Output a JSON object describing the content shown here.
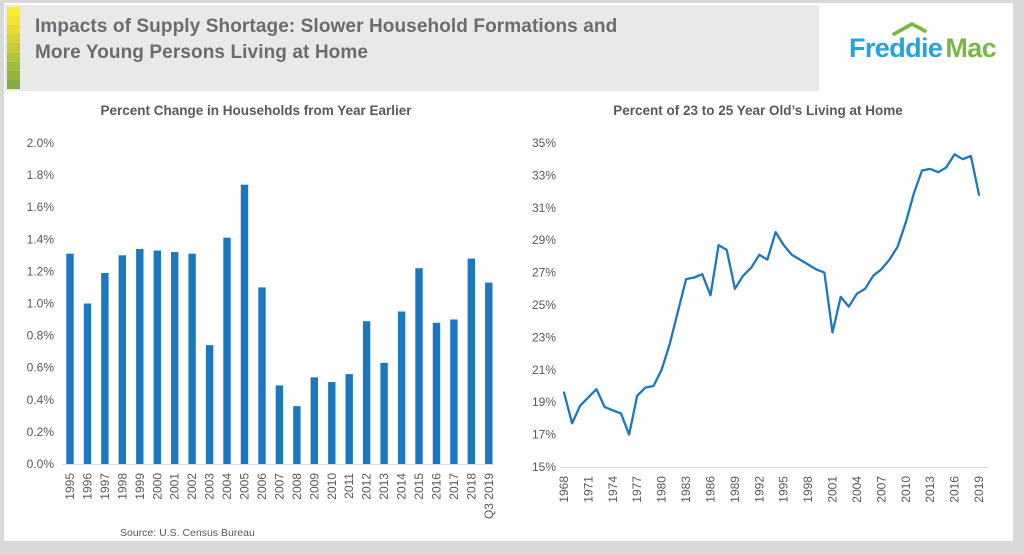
{
  "header": {
    "title_line1": "Impacts of Supply Shortage: Slower Household Formations and",
    "title_line2": "More Young Persons Living at Home",
    "logo_freddie": "Freddie",
    "logo_mac": "Mac"
  },
  "source_note": "Source: U.S. Census Bureau",
  "colors": {
    "accent_blue": "#1B78BE",
    "logo_blue": "#26A3DC",
    "logo_green": "#77B843",
    "header_band": "#E9E9E7",
    "frame_gray": "#D9D9D9",
    "title_gray": "#6B6C6F",
    "axis_text_gray": "#595959",
    "gradient_strip": [
      "#F9EC31",
      "#F3E431",
      "#E6DC34",
      "#D7D437",
      "#C6CC3A",
      "#B3C43D",
      "#A2BC40",
      "#92B541",
      "#83AE3F"
    ]
  },
  "chart_data": [
    {
      "type": "bar",
      "title": "Percent Change in Households from Year Earlier",
      "categories": [
        "1995",
        "1996",
        "1997",
        "1998",
        "1999",
        "2000",
        "2001",
        "2002",
        "2003",
        "2004",
        "2005",
        "2006",
        "2007",
        "2008",
        "2009",
        "2010",
        "2011",
        "2012",
        "2013",
        "2014",
        "2015",
        "2016",
        "2017",
        "2018",
        "Q3 2019"
      ],
      "values": [
        1.31,
        1.0,
        1.19,
        1.3,
        1.34,
        1.33,
        1.32,
        1.31,
        0.74,
        1.41,
        1.74,
        1.1,
        0.49,
        0.36,
        0.54,
        0.51,
        0.56,
        0.89,
        0.63,
        0.95,
        1.22,
        0.88,
        0.9,
        1.28,
        1.13
      ],
      "xlabel": "",
      "ylabel": "",
      "ylim": [
        0,
        2.0
      ],
      "ytick_values": [
        0,
        0.2,
        0.4,
        0.6,
        0.8,
        1.0,
        1.2,
        1.4,
        1.6,
        1.8,
        2.0
      ],
      "ytick_labels": [
        "0.0%",
        "0.2%",
        "0.4%",
        "0.6%",
        "0.8%",
        "1.0%",
        "1.2%",
        "1.4%",
        "1.6%",
        "1.8%",
        "2.0%"
      ],
      "grid": false,
      "legend": false,
      "bar_color": "#1B78BE",
      "source": "Source: U.S. Census Bureau"
    },
    {
      "type": "line",
      "title": "Percent of 23 to 25 Year Old’s Living at Home",
      "x": [
        1968,
        1969,
        1970,
        1971,
        1972,
        1973,
        1974,
        1975,
        1976,
        1977,
        1978,
        1979,
        1980,
        1981,
        1982,
        1983,
        1984,
        1985,
        1986,
        1987,
        1988,
        1989,
        1990,
        1991,
        1992,
        1993,
        1994,
        1995,
        1996,
        1997,
        1998,
        1999,
        2000,
        2001,
        2002,
        2003,
        2004,
        2005,
        2006,
        2007,
        2008,
        2009,
        2010,
        2011,
        2012,
        2013,
        2014,
        2015,
        2016,
        2017,
        2018,
        2019
      ],
      "values": [
        19.6,
        17.7,
        18.8,
        19.3,
        19.8,
        18.7,
        18.5,
        18.3,
        17.0,
        19.4,
        19.9,
        20.0,
        21.0,
        22.6,
        24.6,
        26.6,
        26.7,
        26.9,
        25.6,
        28.7,
        28.4,
        26.0,
        26.8,
        27.3,
        28.1,
        27.8,
        29.5,
        28.7,
        28.1,
        27.8,
        27.5,
        27.2,
        27.0,
        23.3,
        25.5,
        24.9,
        25.7,
        26.0,
        26.8,
        27.2,
        27.8,
        28.6,
        30.1,
        31.9,
        33.3,
        33.4,
        33.2,
        33.5,
        34.3,
        34.0,
        34.2,
        31.8
      ],
      "xlabel": "",
      "ylabel": "",
      "ylim": [
        15,
        35
      ],
      "ytick_values": [
        15,
        17,
        19,
        21,
        23,
        25,
        27,
        29,
        31,
        33,
        35
      ],
      "ytick_labels": [
        "15%",
        "17%",
        "19%",
        "21%",
        "23%",
        "25%",
        "27%",
        "29%",
        "31%",
        "33%",
        "35%"
      ],
      "xtick_values": [
        1968,
        1971,
        1974,
        1977,
        1980,
        1983,
        1986,
        1989,
        1992,
        1995,
        1998,
        2001,
        2004,
        2007,
        2010,
        2013,
        2016,
        2019
      ],
      "grid": false,
      "legend": false,
      "line_color": "#1B78BE"
    }
  ]
}
